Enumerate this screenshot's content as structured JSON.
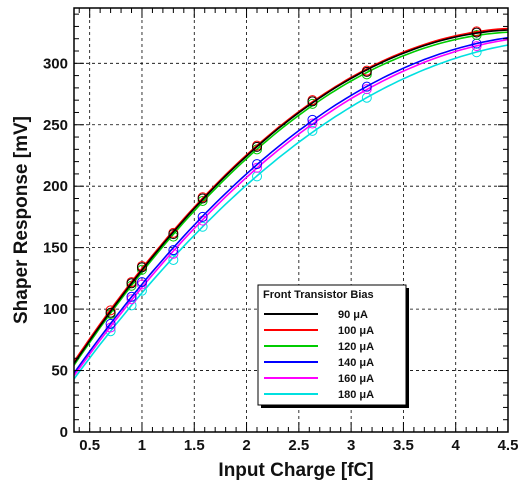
{
  "chart_data": {
    "type": "line",
    "xlabel": "Input Charge [fC]",
    "ylabel": "Shaper Response [mV]",
    "xlim": [
      0.35,
      4.5
    ],
    "ylim": [
      0,
      345
    ],
    "x_ticks": [
      "0.5",
      "1",
      "1.5",
      "2",
      "2.5",
      "3",
      "3.5",
      "4",
      "4.5"
    ],
    "y_ticks": [
      "0",
      "50",
      "100",
      "150",
      "200",
      "250",
      "300"
    ],
    "grid": true,
    "legend": {
      "title": "Front Transistor Bias",
      "position": "bottom-right"
    },
    "x_measured": [
      0.7,
      0.9,
      1.0,
      1.3,
      1.58,
      2.1,
      2.63,
      3.15,
      4.2
    ],
    "series": [
      {
        "name": "90 μA",
        "color": "#000000",
        "values": [
          97,
          121,
          134,
          161,
          190,
          232,
          269,
          293,
          325
        ]
      },
      {
        "name": "100 μA",
        "color": "#ff0000",
        "values": [
          99,
          122,
          135,
          162,
          191,
          233,
          270,
          294,
          326
        ]
      },
      {
        "name": "120 μA",
        "color": "#00cc00",
        "values": [
          96,
          119,
          132,
          159,
          188,
          230,
          267,
          291,
          323
        ]
      },
      {
        "name": "140 μA",
        "color": "#0000ff",
        "values": [
          88,
          110,
          122,
          148,
          175,
          218,
          254,
          281,
          316
        ]
      },
      {
        "name": "160 μA",
        "color": "#ff00ff",
        "values": [
          85,
          108,
          120,
          145,
          172,
          215,
          251,
          279,
          314
        ]
      },
      {
        "name": "180 μA",
        "color": "#00e0e0",
        "values": [
          82,
          103,
          115,
          140,
          167,
          208,
          245,
          272,
          309
        ]
      }
    ]
  }
}
